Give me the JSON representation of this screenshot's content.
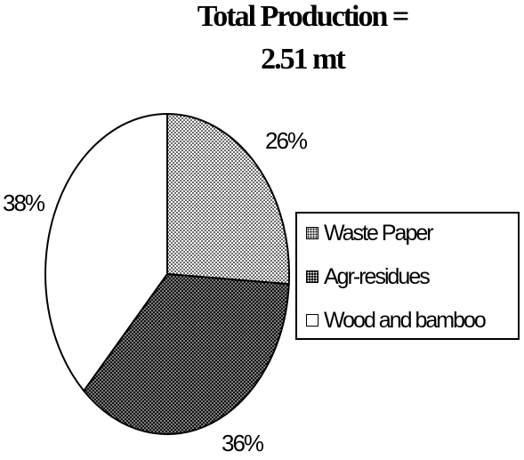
{
  "chart_data": {
    "type": "pie",
    "title_line1": "Total Production =",
    "title_line2": "2.51 mt",
    "slices": [
      {
        "label": "Waste Paper",
        "value": 26,
        "value_label": "26%",
        "fill": "light-dots"
      },
      {
        "label": "Agr-residues",
        "value": 36,
        "value_label": "36%",
        "fill": "dark-dots"
      },
      {
        "label": "Wood and bamboo",
        "value": 38,
        "value_label": "38%",
        "fill": "white"
      }
    ],
    "legend_position": "right",
    "colors": {
      "outline": "#000000",
      "light": "#ffffff",
      "dark": "#111111"
    }
  }
}
